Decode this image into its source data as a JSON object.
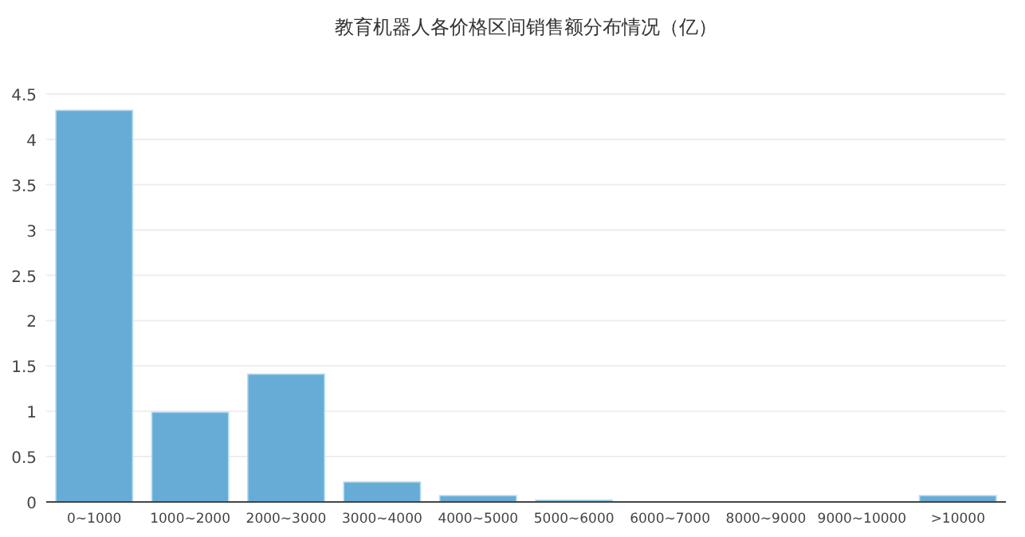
{
  "chart_data": {
    "type": "bar",
    "title": "教育机器人各价格区间销售额分布情况（亿）",
    "categories": [
      "0~1000",
      "1000~2000",
      "2000~3000",
      "3000~4000",
      "4000~5000",
      "5000~6000",
      "6000~7000",
      "8000~9000",
      "9000~10000",
      ">10000"
    ],
    "values": [
      4.32,
      0.99,
      1.41,
      0.22,
      0.07,
      0.02,
      0,
      0,
      0,
      0.07
    ],
    "color": "#66acd6",
    "ylim": [
      0,
      4.5
    ],
    "yticks": [
      0,
      0.5,
      1,
      1.5,
      2,
      2.5,
      3,
      3.5,
      4,
      4.5
    ],
    "grid": "y"
  }
}
